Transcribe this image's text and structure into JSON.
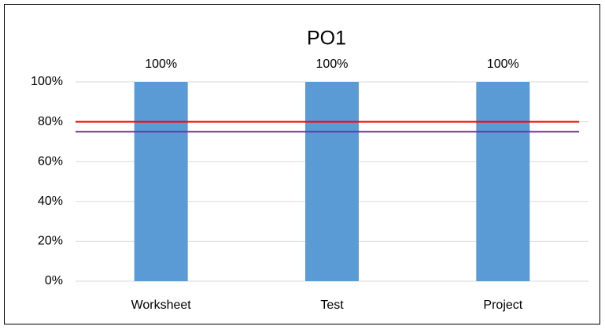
{
  "chart_data": {
    "type": "bar",
    "title": "PO1",
    "categories": [
      "Worksheet",
      "Test",
      "Project"
    ],
    "values": [
      100,
      100,
      100
    ],
    "value_labels": [
      "100%",
      "100%",
      "100%"
    ],
    "color": "#5b9bd5",
    "ylim": [
      0,
      100
    ],
    "yticks": [
      {
        "value": 0,
        "label": "0%"
      },
      {
        "value": 20,
        "label": "20%"
      },
      {
        "value": 40,
        "label": "40%"
      },
      {
        "value": 60,
        "label": "60%"
      },
      {
        "value": 80,
        "label": "80%"
      },
      {
        "value": 100,
        "label": "100%"
      }
    ],
    "grid": true,
    "reference_lines": [
      {
        "value": 80,
        "color": "#ff0000"
      },
      {
        "value": 75,
        "color": "#7030a0"
      }
    ]
  }
}
